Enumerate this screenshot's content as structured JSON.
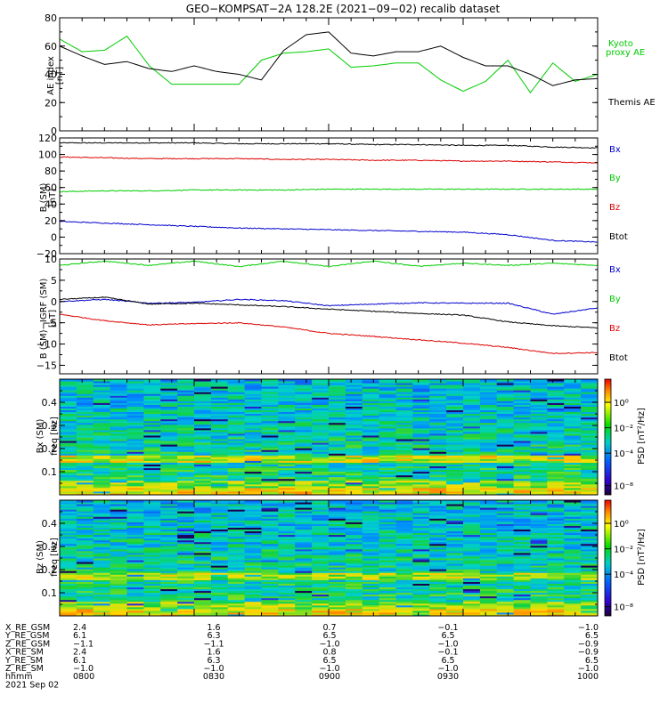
{
  "title": "GEO−KOMPSAT−2A 128.2E (2021−09−02) recalib dataset",
  "chart_data": [
    {
      "type": "line",
      "panel": "AE index",
      "ylabel": "AE index [nT]",
      "ylim": [
        0,
        80
      ],
      "yticks": [
        0,
        20,
        40,
        60,
        80
      ],
      "x": [
        "08:00",
        "08:05",
        "08:10",
        "08:15",
        "08:20",
        "08:25",
        "08:30",
        "08:35",
        "08:40",
        "08:45",
        "08:50",
        "08:55",
        "09:00",
        "09:05",
        "09:10",
        "09:15",
        "09:20",
        "09:25",
        "09:30",
        "09:35",
        "09:40",
        "09:45",
        "09:50",
        "09:55",
        "10:00"
      ],
      "series": [
        {
          "name": "Kyoto proxy AE",
          "color": "#00cc00",
          "values": [
            65,
            56,
            57,
            67,
            46,
            33,
            33,
            33,
            33,
            50,
            55,
            56,
            58,
            45,
            46,
            48,
            48,
            36,
            28,
            35,
            50,
            27,
            48,
            35,
            40
          ]
        },
        {
          "name": "Themis AE",
          "color": "#000000",
          "values": [
            60,
            53,
            47,
            49,
            44,
            42,
            46,
            42,
            40,
            36,
            57,
            68,
            70,
            55,
            53,
            56,
            56,
            60,
            52,
            46,
            46,
            40,
            32,
            36,
            37
          ]
        }
      ]
    },
    {
      "type": "line",
      "panel": "B (SM)",
      "ylabel": "B (SM) [nT]",
      "ylim": [
        -20,
        120
      ],
      "yticks": [
        -20,
        0,
        20,
        40,
        60,
        80,
        100,
        120
      ],
      "x": [
        "08:00",
        "08:10",
        "08:20",
        "08:30",
        "08:40",
        "08:50",
        "09:00",
        "09:10",
        "09:20",
        "09:30",
        "09:40",
        "09:50",
        "10:00"
      ],
      "series": [
        {
          "name": "Btot",
          "color": "#000000",
          "values": [
            114,
            114,
            114,
            114,
            113,
            113,
            113,
            112,
            112,
            111,
            111,
            109,
            108
          ]
        },
        {
          "name": "Bz",
          "color": "#dd0000",
          "values": [
            97,
            96,
            95,
            95,
            95,
            94,
            94,
            93,
            93,
            92,
            92,
            91,
            90
          ]
        },
        {
          "name": "By",
          "color": "#00cc00",
          "values": [
            55,
            56,
            56,
            57,
            57,
            57,
            58,
            58,
            58,
            58,
            58,
            58,
            58
          ]
        },
        {
          "name": "Bx",
          "color": "#0000cc",
          "values": [
            19,
            17,
            15,
            13,
            11,
            10,
            9,
            8,
            7,
            6,
            3,
            -4,
            -6
          ]
        }
      ]
    },
    {
      "type": "line",
      "panel": "B (SM)−IGRF (SM)",
      "ylabel": "B (SM)−IGRF (SM) [nT]",
      "ylim": [
        -17,
        10
      ],
      "yticks": [
        -15,
        -10,
        -5,
        0,
        5,
        10
      ],
      "x": [
        "08:00",
        "08:10",
        "08:20",
        "08:30",
        "08:40",
        "08:50",
        "09:00",
        "09:10",
        "09:20",
        "09:30",
        "09:40",
        "09:50",
        "10:00"
      ],
      "series": [
        {
          "name": "By",
          "color": "#00cc00",
          "values": [
            8.5,
            9.5,
            8.5,
            9.5,
            8.2,
            9.5,
            8.2,
            9.5,
            8.3,
            9.0,
            8.5,
            9.0,
            8.5
          ]
        },
        {
          "name": "Bx",
          "color": "#0000cc",
          "values": [
            0,
            0.5,
            -0.4,
            -0.2,
            0.5,
            0.2,
            -1.0,
            -0.6,
            -0.3,
            -0.4,
            -0.4,
            -3.0,
            -1.5
          ]
        },
        {
          "name": "Btot",
          "color": "#000000",
          "values": [
            0.5,
            1.0,
            -0.6,
            -0.4,
            -0.8,
            -1.2,
            -1.8,
            -2.3,
            -2.8,
            -3.2,
            -4.8,
            -5.7,
            -6.2
          ]
        },
        {
          "name": "Bz",
          "color": "#dd0000",
          "values": [
            -3.0,
            -4.5,
            -5.5,
            -5.2,
            -5.0,
            -6.0,
            -7.5,
            -8.2,
            -9.0,
            -9.8,
            -10.8,
            -12.2,
            -12.0
          ]
        }
      ]
    },
    {
      "type": "heatmap",
      "panel": "Bx (SM)",
      "ylabel": "Bx (SM) freq [Hz]",
      "ylim": [
        0,
        0.5
      ],
      "yticks": [
        0.1,
        0.2,
        0.3,
        0.4
      ],
      "colorbar": {
        "label": "PSD [nT²/Hz]",
        "ticks": [
          "10⁰",
          "10⁻²",
          "10⁻⁴",
          "10⁻⁸"
        ]
      }
    },
    {
      "type": "heatmap",
      "panel": "Bz (SM)",
      "ylabel": "Bz (SM) freq [Hz]",
      "ylim": [
        0,
        0.5
      ],
      "yticks": [
        0.1,
        0.2,
        0.3,
        0.4
      ],
      "colorbar": {
        "label": "PSD [nT²/Hz]",
        "ticks": [
          "10⁰",
          "10⁻²",
          "10⁻⁴",
          "10⁻⁸"
        ]
      }
    }
  ],
  "legends": {
    "ae": [
      "Kyoto",
      "proxy AE",
      "Themis AE"
    ],
    "b": [
      "Bx",
      "By",
      "Bz",
      "Btot"
    ],
    "db": [
      "Bx",
      "By",
      "Bz",
      "Btot"
    ]
  },
  "axis_labels": {
    "ae": [
      "AE index",
      "[nT]"
    ],
    "b": [
      "B (SM)",
      "[nT]"
    ],
    "db": [
      "B (SM)−IGRF (SM)",
      "[nT]"
    ],
    "bx": [
      "Bx (SM)",
      "freq [Hz]"
    ],
    "bz": [
      "Bz (SM)",
      "freq [Hz]"
    ],
    "psd": "PSD [nT²/Hz]"
  },
  "ephemeris": {
    "rows": [
      {
        "label": "X_RE_GSM",
        "values": [
          "2.4",
          "1.6",
          "0.7",
          "−0.1",
          "−1.0"
        ]
      },
      {
        "label": "Y_RE_GSM",
        "values": [
          "6.1",
          "6.3",
          "6.5",
          "6.5",
          "6.5"
        ]
      },
      {
        "label": "Z_RE_GSM",
        "values": [
          "−1.1",
          "−1.1",
          "−1.0",
          "−1.0",
          "−0.9"
        ]
      },
      {
        "label": "X_RE_SM",
        "values": [
          "2.4",
          "1.6",
          "0.8",
          "−0.1",
          "−0.9"
        ]
      },
      {
        "label": "Y_RE_SM",
        "values": [
          "6.1",
          "6.3",
          "6.5",
          "6.5",
          "6.5"
        ]
      },
      {
        "label": "Z_RE_SM",
        "values": [
          "−1.0",
          "−1.0",
          "−1.0",
          "−1.0",
          "−1.0"
        ]
      },
      {
        "label": "hhmm",
        "values": [
          "0800",
          "0830",
          "0900",
          "0930",
          "1000"
        ]
      }
    ],
    "date": "2021 Sep 02"
  }
}
